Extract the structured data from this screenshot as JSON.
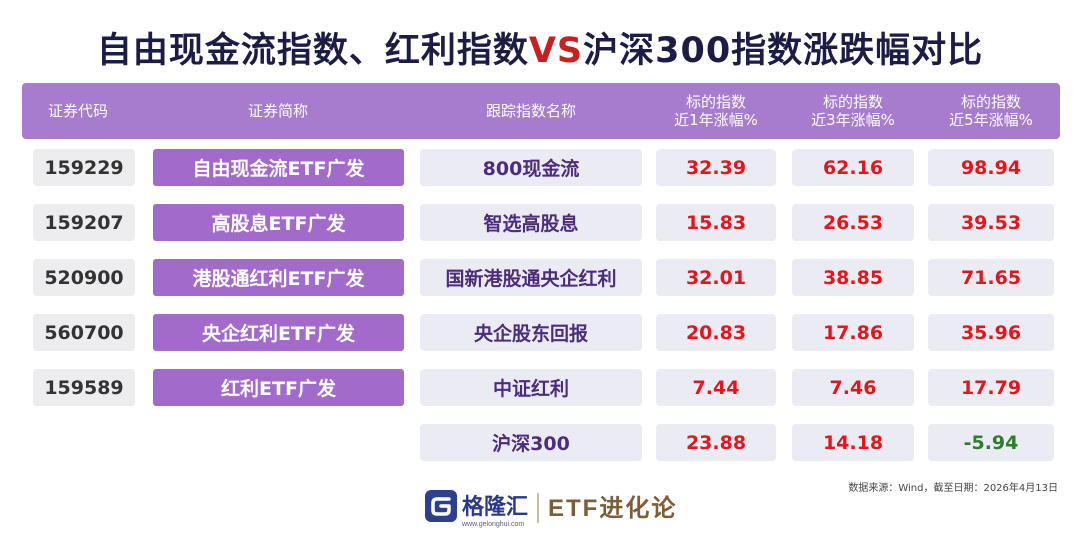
{
  "title": {
    "part1": "自由现金流指数、红利指数",
    "vs": "VS",
    "part2": "沪深300指数涨跌幅对比"
  },
  "table": {
    "headers": [
      {
        "line1": "证券代码",
        "line2": ""
      },
      {
        "line1": "证券简称",
        "line2": ""
      },
      {
        "line1": "跟踪指数名称",
        "line2": ""
      },
      {
        "line1": "标的指数",
        "line2": "近1年涨幅%"
      },
      {
        "line1": "标的指数",
        "line2": "近3年涨幅%"
      },
      {
        "line1": "标的指数",
        "line2": "近5年涨幅%"
      }
    ],
    "rows": [
      {
        "code": "159229",
        "name": "自由现金流ETF广发",
        "index": "800现金流",
        "y1": "32.39",
        "y3": "62.16",
        "y5": "98.94"
      },
      {
        "code": "159207",
        "name": "高股息ETF广发",
        "index": "智选高股息",
        "y1": "15.83",
        "y3": "26.53",
        "y5": "39.53"
      },
      {
        "code": "520900",
        "name": "港股通红利ETF广发",
        "index": "国新港股通央企红利",
        "y1": "32.01",
        "y3": "38.85",
        "y5": "71.65"
      },
      {
        "code": "560700",
        "name": "央企红利ETF广发",
        "index": "央企股东回报",
        "y1": "20.83",
        "y3": "17.86",
        "y5": "35.96"
      },
      {
        "code": "159589",
        "name": "红利ETF广发",
        "index": "中证红利",
        "y1": "7.44",
        "y3": "7.46",
        "y5": "17.79"
      }
    ],
    "benchmark": {
      "index": "沪深300",
      "y1": "23.88",
      "y3": "14.18",
      "y5": "-5.94"
    }
  },
  "source": "数据来源：Wind，截至日期：2026年4月13日",
  "footer": {
    "brand": "格隆汇",
    "url": "www.gelonghui.com",
    "column": "ETF进化论"
  },
  "colors": {
    "title": "#1c1c46",
    "accent_red": "#c9201f",
    "header_bg": "#a77cce",
    "name_bg": "#a26bcb",
    "positive": "#e1171e",
    "negative": "#2e7d2e"
  }
}
